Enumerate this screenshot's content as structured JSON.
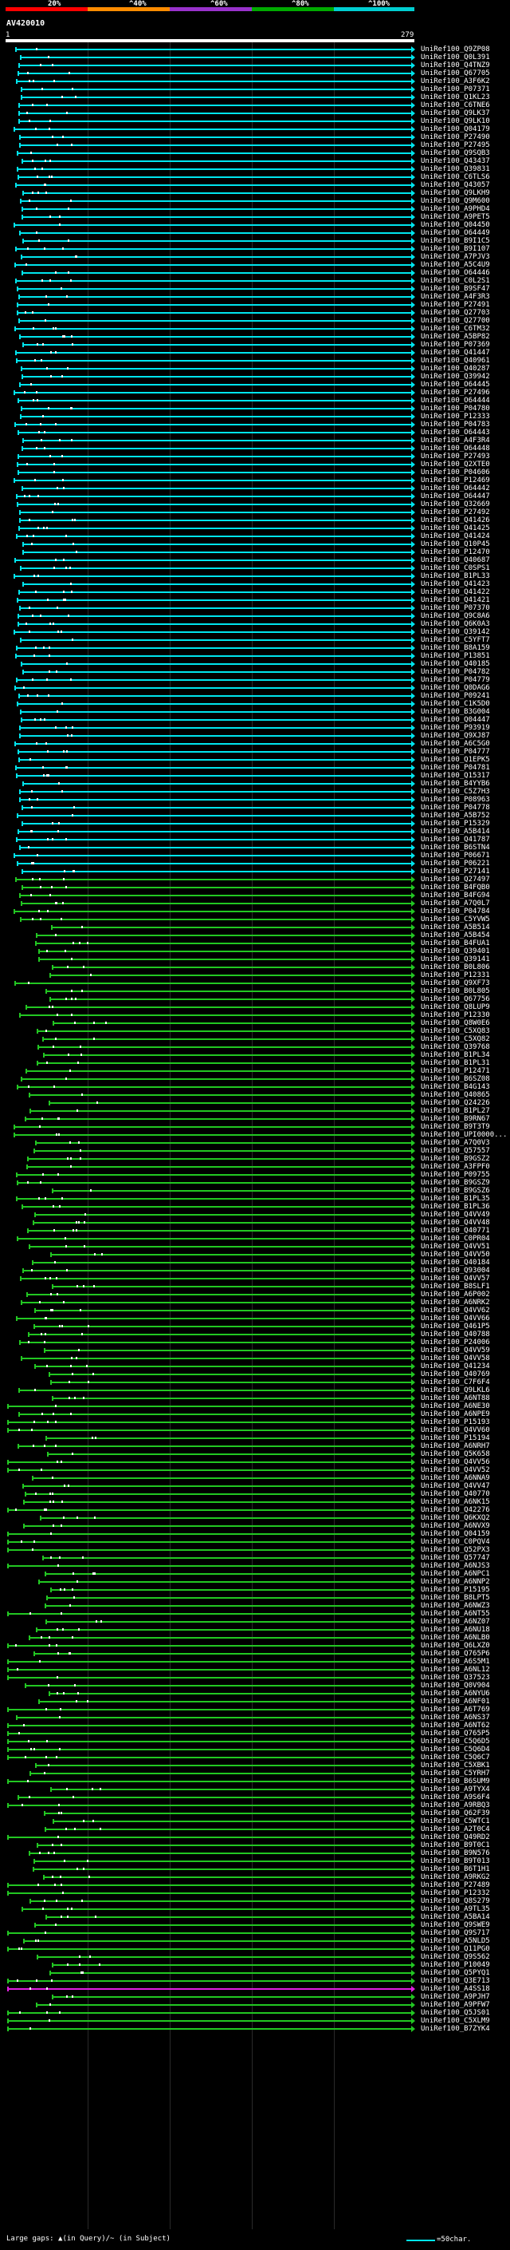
{
  "legend": {
    "ticks": [
      "20%",
      "^40%",
      "^60%",
      "^80%",
      "^100%"
    ],
    "colors": [
      "#ff0000",
      "#ff8c00",
      "#9932cc",
      "#00aa00",
      "#00ced1"
    ]
  },
  "query": {
    "name": "AV420010",
    "start": "1",
    "end": "279"
  },
  "footer": {
    "gaps_text": "Large gaps: ▲(in Query)/~ (in Subject)",
    "scale_text": "=50char."
  },
  "hits": [
    {
      "id": "UniRef100_Q9ZP08",
      "color": "cyan"
    },
    {
      "id": "UniRef100_Q0L391",
      "color": "cyan"
    },
    {
      "id": "UniRef100_Q4TNZ9",
      "color": "cyan"
    },
    {
      "id": "UniRef100_Q67705",
      "color": "cyan"
    },
    {
      "id": "UniRef100_A3F6K2",
      "color": "cyan"
    },
    {
      "id": "UniRef100_P07371",
      "color": "cyan"
    },
    {
      "id": "UniRef100_Q1KL23",
      "color": "cyan"
    },
    {
      "id": "UniRef100_C6TNE6",
      "color": "cyan"
    },
    {
      "id": "UniRef100_Q9LK37",
      "color": "cyan"
    },
    {
      "id": "UniRef100_Q9LK10",
      "color": "cyan"
    },
    {
      "id": "UniRef100_Q04179",
      "color": "cyan"
    },
    {
      "id": "UniRef100_P27490",
      "color": "cyan"
    },
    {
      "id": "UniRef100_P27495",
      "color": "cyan"
    },
    {
      "id": "UniRef100_Q9SQB3",
      "color": "cyan"
    },
    {
      "id": "UniRef100_Q43437",
      "color": "cyan"
    },
    {
      "id": "UniRef100_Q39831",
      "color": "cyan"
    },
    {
      "id": "UniRef100_C6TLS6",
      "color": "cyan"
    },
    {
      "id": "UniRef100_Q43057",
      "color": "cyan"
    },
    {
      "id": "UniRef100_Q9LKH9",
      "color": "cyan"
    },
    {
      "id": "UniRef100_Q9M600",
      "color": "cyan"
    },
    {
      "id": "UniRef100_A9PHD4",
      "color": "cyan"
    },
    {
      "id": "UniRef100_A9PET5",
      "color": "cyan"
    },
    {
      "id": "UniRef100_Q04450",
      "color": "cyan"
    },
    {
      "id": "UniRef100_O64449",
      "color": "cyan"
    },
    {
      "id": "UniRef100_B9I1C5",
      "color": "cyan"
    },
    {
      "id": "UniRef100_B9I107",
      "color": "cyan"
    },
    {
      "id": "UniRef100_A7PJV3",
      "color": "cyan"
    },
    {
      "id": "UniRef100_A5C4U9",
      "color": "cyan"
    },
    {
      "id": "UniRef100_O64446",
      "color": "cyan"
    },
    {
      "id": "UniRef100_C0L2S1",
      "color": "cyan"
    },
    {
      "id": "UniRef100_B9SF47",
      "color": "cyan"
    },
    {
      "id": "UniRef100_A4F3R3",
      "color": "cyan"
    },
    {
      "id": "UniRef100_P27491",
      "color": "cyan"
    },
    {
      "id": "UniRef100_Q27703",
      "color": "cyan"
    },
    {
      "id": "UniRef100_Q27700",
      "color": "cyan"
    },
    {
      "id": "UniRef100_C6TM32",
      "color": "cyan"
    },
    {
      "id": "UniRef100_A5BP82",
      "color": "cyan"
    },
    {
      "id": "UniRef100_P07369",
      "color": "cyan"
    },
    {
      "id": "UniRef100_Q41447",
      "color": "cyan"
    },
    {
      "id": "UniRef100_Q40961",
      "color": "cyan"
    },
    {
      "id": "UniRef100_Q40287",
      "color": "cyan"
    },
    {
      "id": "UniRef100_Q39942",
      "color": "cyan"
    },
    {
      "id": "UniRef100_O64445",
      "color": "cyan"
    },
    {
      "id": "UniRef100_P27496",
      "color": "cyan"
    },
    {
      "id": "UniRef100_O64444",
      "color": "cyan"
    },
    {
      "id": "UniRef100_P04780",
      "color": "cyan"
    },
    {
      "id": "UniRef100_P12333",
      "color": "cyan"
    },
    {
      "id": "UniRef100_P04783",
      "color": "cyan"
    },
    {
      "id": "UniRef100_O64443",
      "color": "cyan"
    },
    {
      "id": "UniRef100_A4F3R4",
      "color": "cyan"
    },
    {
      "id": "UniRef100_O64448",
      "color": "cyan"
    },
    {
      "id": "UniRef100_P27493",
      "color": "cyan"
    },
    {
      "id": "UniRef100_Q2XTE0",
      "color": "cyan"
    },
    {
      "id": "UniRef100_P04606",
      "color": "cyan"
    },
    {
      "id": "UniRef100_P12469",
      "color": "cyan"
    },
    {
      "id": "UniRef100_O64442",
      "color": "cyan"
    },
    {
      "id": "UniRef100_O64447",
      "color": "cyan"
    },
    {
      "id": "UniRef100_Q32669",
      "color": "cyan"
    },
    {
      "id": "UniRef100_P27492",
      "color": "cyan"
    },
    {
      "id": "UniRef100_Q41426",
      "color": "cyan"
    },
    {
      "id": "UniRef100_Q41425",
      "color": "cyan"
    },
    {
      "id": "UniRef100_Q41424",
      "color": "cyan"
    },
    {
      "id": "UniRef100_Q10P45",
      "color": "cyan"
    },
    {
      "id": "UniRef100_P12470",
      "color": "cyan"
    },
    {
      "id": "UniRef100_Q40687",
      "color": "cyan"
    },
    {
      "id": "UniRef100_C0SPS1",
      "color": "cyan"
    },
    {
      "id": "UniRef100_B1PL33",
      "color": "cyan"
    },
    {
      "id": "UniRef100_Q41423",
      "color": "cyan"
    },
    {
      "id": "UniRef100_Q41422",
      "color": "cyan"
    },
    {
      "id": "UniRef100_Q41421",
      "color": "cyan"
    },
    {
      "id": "UniRef100_P07370",
      "color": "cyan"
    },
    {
      "id": "UniRef100_Q9C8A6",
      "color": "cyan"
    },
    {
      "id": "UniRef100_Q6K0A3",
      "color": "cyan"
    },
    {
      "id": "UniRef100_Q39142",
      "color": "cyan"
    },
    {
      "id": "UniRef100_C5YFT7",
      "color": "cyan"
    },
    {
      "id": "UniRef100_B8A159",
      "color": "cyan"
    },
    {
      "id": "UniRef100_P13851",
      "color": "cyan"
    },
    {
      "id": "UniRef100_Q40185",
      "color": "cyan"
    },
    {
      "id": "UniRef100_P04782",
      "color": "cyan"
    },
    {
      "id": "UniRef100_P04779",
      "color": "cyan"
    },
    {
      "id": "UniRef100_Q0DAG6",
      "color": "cyan"
    },
    {
      "id": "UniRef100_P09241",
      "color": "cyan"
    },
    {
      "id": "UniRef100_C1K5D0",
      "color": "cyan"
    },
    {
      "id": "UniRef100_B3G004",
      "color": "cyan"
    },
    {
      "id": "UniRef100_Q04447",
      "color": "cyan"
    },
    {
      "id": "UniRef100_P93919",
      "color": "cyan"
    },
    {
      "id": "UniRef100_Q9XJ87",
      "color": "cyan"
    },
    {
      "id": "UniRef100_A6C5G0",
      "color": "cyan"
    },
    {
      "id": "UniRef100_P04777",
      "color": "cyan"
    },
    {
      "id": "UniRef100_Q1EPK5",
      "color": "cyan"
    },
    {
      "id": "UniRef100_P04781",
      "color": "cyan"
    },
    {
      "id": "UniRef100_Q15317",
      "color": "cyan"
    },
    {
      "id": "UniRef100_B4YYB6",
      "color": "cyan"
    },
    {
      "id": "UniRef100_C5Z7H3",
      "color": "cyan"
    },
    {
      "id": "UniRef100_P08963",
      "color": "cyan"
    },
    {
      "id": "UniRef100_P04778",
      "color": "cyan"
    },
    {
      "id": "UniRef100_A5B752",
      "color": "cyan"
    },
    {
      "id": "UniRef100_P15329",
      "color": "cyan"
    },
    {
      "id": "UniRef100_A5B414",
      "color": "cyan"
    },
    {
      "id": "UniRef100_Q41787",
      "color": "cyan"
    },
    {
      "id": "UniRef100_B6STN4",
      "color": "cyan"
    },
    {
      "id": "UniRef100_P06671",
      "color": "cyan"
    },
    {
      "id": "UniRef100_P06221",
      "color": "cyan"
    },
    {
      "id": "UniRef100_P27141",
      "color": "cyan"
    },
    {
      "id": "UniRef100_Q27497",
      "color": "green"
    },
    {
      "id": "UniRef100_B4FQB0",
      "color": "green"
    },
    {
      "id": "UniRef100_B4FG94",
      "color": "green"
    },
    {
      "id": "UniRef100_A7Q0L7",
      "color": "green"
    },
    {
      "id": "UniRef100_P04784",
      "color": "green"
    },
    {
      "id": "UniRef100_C5YVW5",
      "color": "green"
    },
    {
      "id": "UniRef100_A5B514",
      "color": "green"
    },
    {
      "id": "UniRef100_A5B454",
      "color": "green"
    },
    {
      "id": "UniRef100_B4FUA1",
      "color": "green"
    },
    {
      "id": "UniRef100_Q39401",
      "color": "green"
    },
    {
      "id": "UniRef100_Q39141",
      "color": "green"
    },
    {
      "id": "UniRef100_B0L806",
      "color": "green"
    },
    {
      "id": "UniRef100_P12331",
      "color": "green"
    },
    {
      "id": "UniRef100_Q9XF73",
      "color": "green"
    },
    {
      "id": "UniRef100_B0L805",
      "color": "green"
    },
    {
      "id": "UniRef100_Q67756",
      "color": "green"
    },
    {
      "id": "UniRef100_Q8LUP9",
      "color": "green"
    },
    {
      "id": "UniRef100_P12330",
      "color": "green"
    },
    {
      "id": "UniRef100_Q8W0E6",
      "color": "green"
    },
    {
      "id": "UniRef100_C5XQ83",
      "color": "green"
    },
    {
      "id": "UniRef100_C5XQ82",
      "color": "green"
    },
    {
      "id": "UniRef100_Q39768",
      "color": "green"
    },
    {
      "id": "UniRef100_B1PL34",
      "color": "green"
    },
    {
      "id": "UniRef100_B1PL31",
      "color": "green"
    },
    {
      "id": "UniRef100_P12471",
      "color": "green"
    },
    {
      "id": "UniRef100_B6SZ08",
      "color": "green"
    },
    {
      "id": "UniRef100_B4G143",
      "color": "green"
    },
    {
      "id": "UniRef100_Q40865",
      "color": "green"
    },
    {
      "id": "UniRef100_Q24226",
      "color": "green"
    },
    {
      "id": "UniRef100_B1PL27",
      "color": "green"
    },
    {
      "id": "UniRef100_B9RN67",
      "color": "green"
    },
    {
      "id": "UniRef100_B9T3T9",
      "color": "green"
    },
    {
      "id": "UniRef100_UPI0000...",
      "color": "green"
    },
    {
      "id": "UniRef100_A7Q0V3",
      "color": "green"
    },
    {
      "id": "UniRef100_Q57557",
      "color": "green"
    },
    {
      "id": "UniRef100_B9GSZ2",
      "color": "green"
    },
    {
      "id": "UniRef100_A3FPF0",
      "color": "green"
    },
    {
      "id": "UniRef100_P09755",
      "color": "green"
    },
    {
      "id": "UniRef100_B9GSZ9",
      "color": "green"
    },
    {
      "id": "UniRef100_B9GSZ6",
      "color": "green"
    },
    {
      "id": "UniRef100_B1PL35",
      "color": "green"
    },
    {
      "id": "UniRef100_B1PL36",
      "color": "green"
    },
    {
      "id": "UniRef100_Q4VV49",
      "color": "green"
    },
    {
      "id": "UniRef100_Q4VV48",
      "color": "green"
    },
    {
      "id": "UniRef100_Q40771",
      "color": "green"
    },
    {
      "id": "UniRef100_C0PR04",
      "color": "green"
    },
    {
      "id": "UniRef100_Q4VV51",
      "color": "green"
    },
    {
      "id": "UniRef100_Q4VV50",
      "color": "green"
    },
    {
      "id": "UniRef100_Q40184",
      "color": "green"
    },
    {
      "id": "UniRef100_Q93004",
      "color": "green"
    },
    {
      "id": "UniRef100_Q4VV57",
      "color": "green"
    },
    {
      "id": "UniRef100_B8SLF1",
      "color": "green"
    },
    {
      "id": "UniRef100_A6P002",
      "color": "green"
    },
    {
      "id": "UniRef100_A6NRK2",
      "color": "green"
    },
    {
      "id": "UniRef100_Q4VV62",
      "color": "green"
    },
    {
      "id": "UniRef100_Q4VV66",
      "color": "green"
    },
    {
      "id": "UniRef100_Q461P5",
      "color": "green"
    },
    {
      "id": "UniRef100_Q40788",
      "color": "green"
    },
    {
      "id": "UniRef100_P24006",
      "color": "green"
    },
    {
      "id": "UniRef100_Q4VV59",
      "color": "green"
    },
    {
      "id": "UniRef100_Q4VV58",
      "color": "green"
    },
    {
      "id": "UniRef100_Q41234",
      "color": "green"
    },
    {
      "id": "UniRef100_Q40769",
      "color": "green"
    },
    {
      "id": "UniRef100_C7F6F4",
      "color": "green"
    },
    {
      "id": "UniRef100_Q9LKL6",
      "color": "green"
    },
    {
      "id": "UniRef100_A6NT88",
      "color": "green"
    },
    {
      "id": "UniRef100_A6NE30",
      "color": "green"
    },
    {
      "id": "UniRef100_A6NPE9",
      "color": "green"
    },
    {
      "id": "UniRef100_P15193",
      "color": "green"
    },
    {
      "id": "UniRef100_Q4VV60",
      "color": "green"
    },
    {
      "id": "UniRef100_P15194",
      "color": "green"
    },
    {
      "id": "UniRef100_A6NRH7",
      "color": "green"
    },
    {
      "id": "UniRef100_Q5K658",
      "color": "green"
    },
    {
      "id": "UniRef100_Q4VV56",
      "color": "green"
    },
    {
      "id": "UniRef100_Q4VV52",
      "color": "green"
    },
    {
      "id": "UniRef100_A6NNA9",
      "color": "green"
    },
    {
      "id": "UniRef100_Q4VV47",
      "color": "green"
    },
    {
      "id": "UniRef100_Q40770",
      "color": "green"
    },
    {
      "id": "UniRef100_A6NK15",
      "color": "green"
    },
    {
      "id": "UniRef100_Q42276",
      "color": "green"
    },
    {
      "id": "UniRef100_Q6KXQ2",
      "color": "green"
    },
    {
      "id": "UniRef100_A6NVX9",
      "color": "green"
    },
    {
      "id": "UniRef100_Q04159",
      "color": "green"
    },
    {
      "id": "UniRef100_C0PQV4",
      "color": "green"
    },
    {
      "id": "UniRef100_Q52PX3",
      "color": "green"
    },
    {
      "id": "UniRef100_Q57747",
      "color": "green"
    },
    {
      "id": "UniRef100_A6NJS3",
      "color": "green"
    },
    {
      "id": "UniRef100_A6NPC1",
      "color": "green"
    },
    {
      "id": "UniRef100_A6NNP2",
      "color": "green"
    },
    {
      "id": "UniRef100_P15195",
      "color": "green"
    },
    {
      "id": "UniRef100_B8LPT5",
      "color": "green"
    },
    {
      "id": "UniRef100_A6NWZ3",
      "color": "green"
    },
    {
      "id": "UniRef100_A6NT55",
      "color": "green"
    },
    {
      "id": "UniRef100_A6NZ07",
      "color": "green"
    },
    {
      "id": "UniRef100_A6NU18",
      "color": "green"
    },
    {
      "id": "UniRef100_A6NLB0",
      "color": "green"
    },
    {
      "id": "UniRef100_Q6LXZ0",
      "color": "green"
    },
    {
      "id": "UniRef100_Q765P6",
      "color": "green"
    },
    {
      "id": "UniRef100_A6S5M1",
      "color": "green"
    },
    {
      "id": "UniRef100_A6NL12",
      "color": "green"
    },
    {
      "id": "UniRef100_Q37523",
      "color": "green"
    },
    {
      "id": "UniRef100_Q0V904",
      "color": "green"
    },
    {
      "id": "UniRef100_A6NYU6",
      "color": "green"
    },
    {
      "id": "UniRef100_A6NF01",
      "color": "green"
    },
    {
      "id": "UniRef100_A6T769",
      "color": "green"
    },
    {
      "id": "UniRef100_A6NS37",
      "color": "green"
    },
    {
      "id": "UniRef100_A6NT62",
      "color": "green"
    },
    {
      "id": "UniRef100_Q765P5",
      "color": "green"
    },
    {
      "id": "UniRef100_C5Q6D5",
      "color": "green"
    },
    {
      "id": "UniRef100_C5Q6D4",
      "color": "green"
    },
    {
      "id": "UniRef100_C5Q6C7",
      "color": "green"
    },
    {
      "id": "UniRef100_C5XBK1",
      "color": "green"
    },
    {
      "id": "UniRef100_C5YRH7",
      "color": "green"
    },
    {
      "id": "UniRef100_B6SUM9",
      "color": "green"
    },
    {
      "id": "UniRef100_A9TYX4",
      "color": "green"
    },
    {
      "id": "UniRef100_A9S6F4",
      "color": "green"
    },
    {
      "id": "UniRef100_A9RBQ3",
      "color": "green"
    },
    {
      "id": "UniRef100_Q62F39",
      "color": "green"
    },
    {
      "id": "UniRef100_C5WTC1",
      "color": "green"
    },
    {
      "id": "UniRef100_A2T0C4",
      "color": "green"
    },
    {
      "id": "UniRef100_Q49RD2",
      "color": "green"
    },
    {
      "id": "UniRef100_B9T0C1",
      "color": "green"
    },
    {
      "id": "UniRef100_B9N576",
      "color": "green"
    },
    {
      "id": "UniRef100_B9T013",
      "color": "green"
    },
    {
      "id": "UniRef100_B6T1H1",
      "color": "green"
    },
    {
      "id": "UniRef100_A9RKG2",
      "color": "green"
    },
    {
      "id": "UniRef100_P27489",
      "color": "green"
    },
    {
      "id": "UniRef100_P12332",
      "color": "green"
    },
    {
      "id": "UniRef100_Q8S279",
      "color": "green"
    },
    {
      "id": "UniRef100_A9TL35",
      "color": "green"
    },
    {
      "id": "UniRef100_A5BA14",
      "color": "green"
    },
    {
      "id": "UniRef100_Q9SWE9",
      "color": "green"
    },
    {
      "id": "UniRef100_Q9S717",
      "color": "green"
    },
    {
      "id": "UniRef100_A5NLD5",
      "color": "green"
    },
    {
      "id": "UniRef100_Q11PG0",
      "color": "green"
    },
    {
      "id": "UniRef100_Q9S562",
      "color": "green"
    },
    {
      "id": "UniRef100_P10049",
      "color": "green"
    },
    {
      "id": "UniRef100_Q5PYQ1",
      "color": "green"
    },
    {
      "id": "UniRef100_Q3E713",
      "color": "green"
    },
    {
      "id": "UniRef100_A4SS18",
      "color": "magenta"
    },
    {
      "id": "UniRef100_A9PJH7",
      "color": "green"
    },
    {
      "id": "UniRef100_A9PFW7",
      "color": "green"
    },
    {
      "id": "UniRef100_Q5JS01",
      "color": "green"
    },
    {
      "id": "UniRef100_C5XLM9",
      "color": "green"
    },
    {
      "id": "UniRef100_B7ZYK4",
      "color": "green"
    }
  ]
}
